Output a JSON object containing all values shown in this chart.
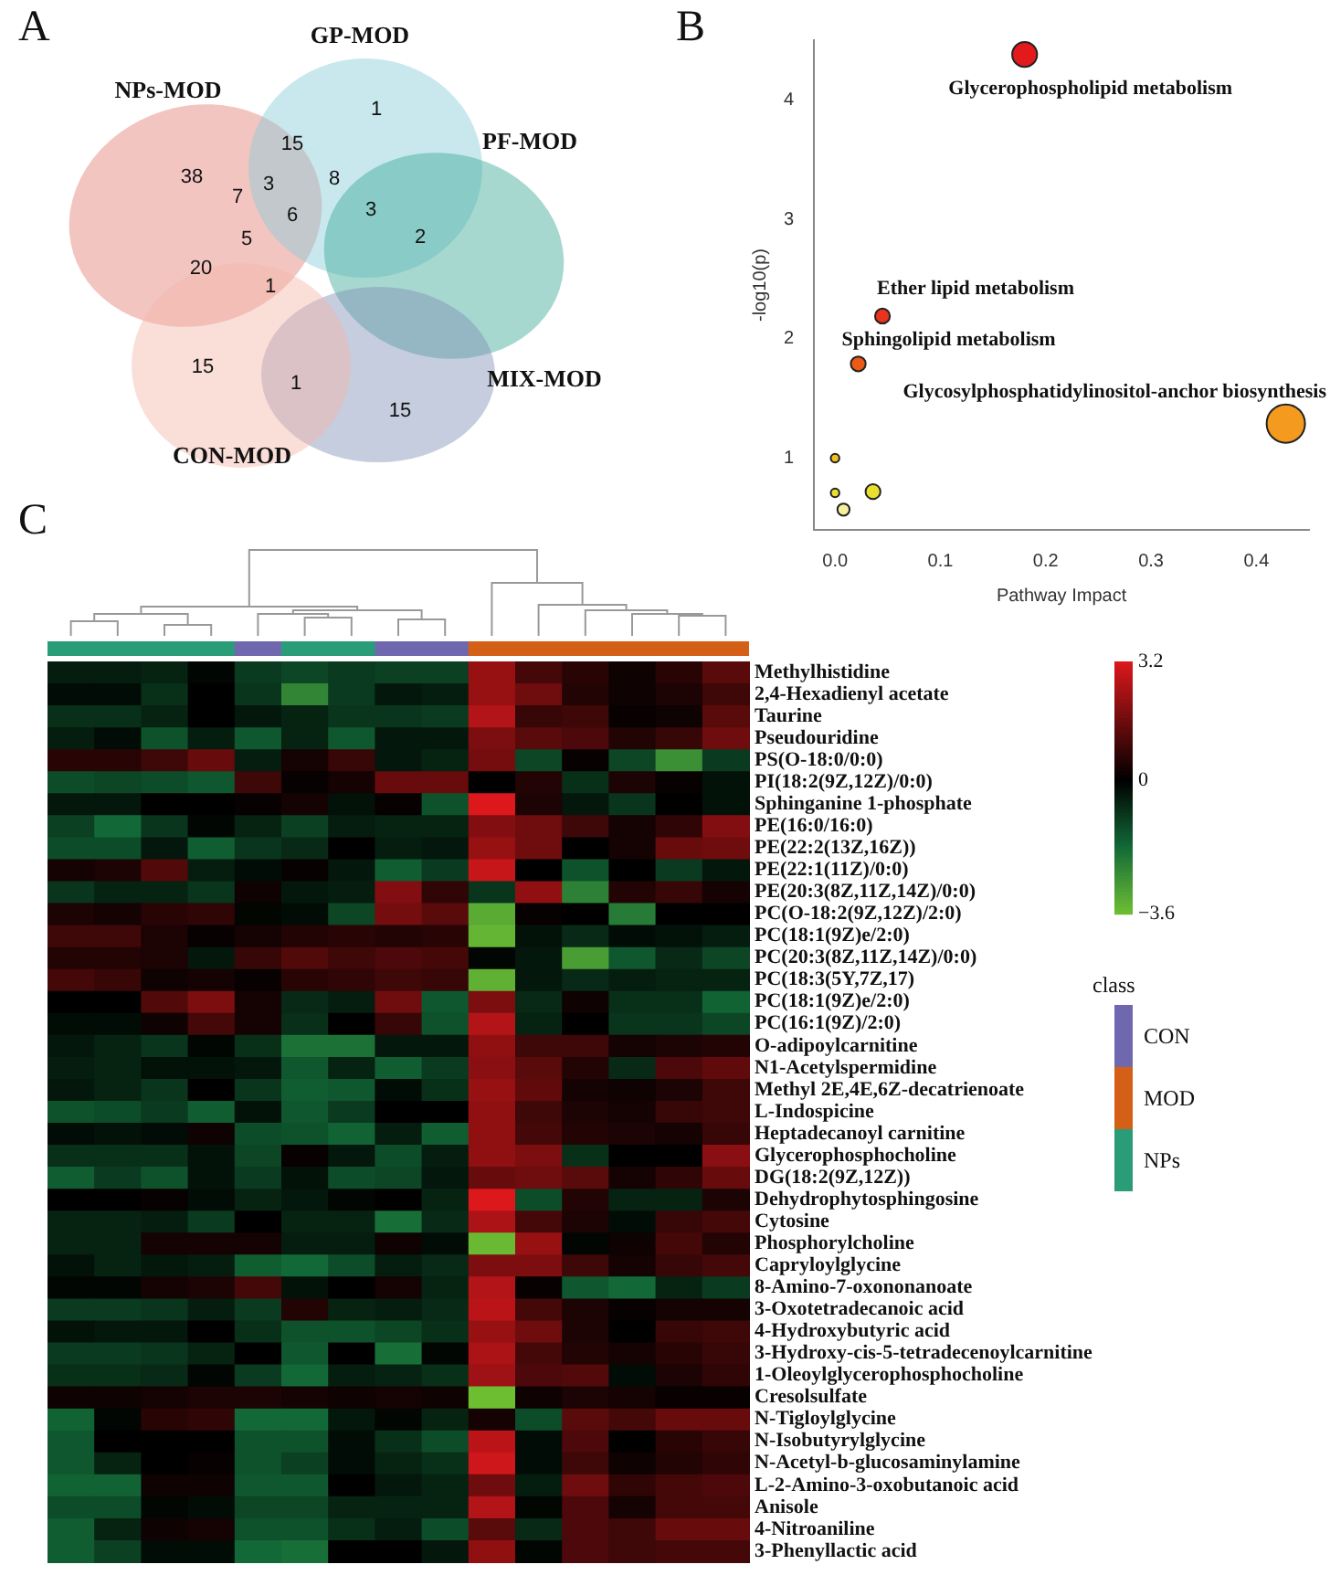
{
  "chart_data": [
    {
      "type": "other",
      "title": "A",
      "categories": [
        "NPs-MOD",
        "GP-MOD",
        "PF-MOD",
        "MIX-MOD",
        "CON-MOD"
      ],
      "colors": [
        "#e57f73",
        "#87ccd9",
        "#3aa896",
        "#8190b5",
        "#f4b5a8"
      ],
      "annotations": [
        "1",
        "15",
        "38",
        "3",
        "8",
        "7",
        "6",
        "3",
        "2",
        "5",
        "20",
        "1",
        "15",
        "1",
        "15"
      ]
    },
    {
      "type": "bubble",
      "title": "B",
      "xlabel": "Pathway Impact",
      "ylabel": "-log10(p)",
      "x": [
        0.18,
        0.045,
        0.022,
        0.428,
        0,
        0,
        0.036,
        0.008
      ],
      "values": [
        4.38,
        2.19,
        1.79,
        1.29,
        1.0,
        0.71,
        0.72,
        0.57
      ],
      "sizes": [
        0.42,
        0.15,
        0.15,
        1,
        0.05,
        0.05,
        0.15,
        0.1
      ],
      "colors": [
        "#e31a1c",
        "#e8341c",
        "#ea5a14",
        "#f39a1f",
        "#f0c020",
        "#e8e030",
        "#e8e030",
        "#f5f0a0"
      ],
      "xlim": [
        -0.02,
        0.45
      ],
      "ylim": [
        0.4,
        4.5
      ],
      "xticks": [
        {
          "value": 0,
          "label": "0.0"
        },
        0.1,
        0.2,
        0.3,
        0.4
      ],
      "yticks": [
        1,
        2,
        3,
        4
      ],
      "annotations": [
        {
          "text": "Glycerophospholipid metabolism",
          "x": 0.18,
          "y": 4.38
        },
        {
          "text": "Ether lipid metabolism",
          "x": 0.045,
          "y": 2.19
        },
        {
          "text": "Sphingolipid metabolism",
          "x": 0.022,
          "y": 1.79
        },
        {
          "text": "Glycosylphosphatidylinositol-anchor biosynthesis",
          "x": 0.428,
          "y": 1.29
        }
      ]
    },
    {
      "type": "heatmap",
      "title": "C",
      "categories": [
        null,
        null,
        null,
        null,
        null,
        null,
        null,
        null,
        null,
        null,
        null,
        null,
        null,
        null,
        null
      ],
      "y_categories": [
        "Methylhistidine",
        "2,4-Hexadienyl acetate",
        "Taurine",
        "Pseudouridine",
        "PS(O-18:0/0:0)",
        "PI(18:2(9Z,12Z)/0:0)",
        "Sphinganine 1-phosphate",
        "PE(16:0/16:0)",
        "PE(22:2(13Z,16Z))",
        "PE(22:1(11Z)/0:0)",
        "PE(20:3(8Z,11Z,14Z)/0:0)",
        "PC(O-18:2(9Z,12Z)/2:0)",
        "PC(18:1(9Z)e/2:0)",
        "PC(20:3(8Z,11Z,14Z)/0:0)",
        "PC(18:3(5Y,7Z,17)",
        "PC(18:1(9Z)e/2:0)",
        "PC(16:1(9Z)/2:0)",
        "O-adipoylcarnitine",
        "N1-Acetylspermidine",
        "Methyl 2E,4E,6Z-decatrienoate",
        "L-Indospicine",
        "Heptadecanoyl carnitine",
        "Glycerophosphocholine",
        "DG(18:2(9Z,12Z))",
        "Dehydrophytosphingosine",
        "Cytosine",
        "Phosphorylcholine",
        "Capryloylglycine",
        "8-Amino-7-oxononanoate",
        "3-Oxotetradecanoic acid",
        "4-Hydroxybutyric acid",
        "3-Hydroxy-cis-5-tetradecenoylcarnitine",
        "1-Oleoylglycerophosphocholine",
        "Cresolsulfate",
        "N-Tigloylglycine",
        "N-Isobutyrylglycine",
        "N-Acetyl-b-glucosaminylamine",
        "L-2-Amino-3-oxobutanoic acid",
        "Anisole",
        "4-Nitroaniline",
        "3-Phenyllactic acid"
      ],
      "cells": [
        [
          -0.5,
          -0.5,
          -0.6,
          -0.1,
          -1.0,
          -1.2,
          -1.0,
          -1.1,
          -1.1,
          2.2,
          1.0,
          0.6,
          0.2,
          0.6,
          1.3
        ],
        [
          -0.2,
          -0.2,
          -0.8,
          0,
          -0.9,
          -2.4,
          -1.0,
          -0.4,
          -0.5,
          2.2,
          1.6,
          0.5,
          0.2,
          0.4,
          0.9
        ],
        [
          -0.8,
          -0.8,
          -0.6,
          0,
          -0.4,
          -0.6,
          -0.9,
          -0.9,
          -1.0,
          2.6,
          0.8,
          0.9,
          0.1,
          0.2,
          1.3
        ],
        [
          -0.5,
          -0.2,
          -1.4,
          -0.5,
          -1.5,
          -0.6,
          -1.5,
          -0.4,
          -0.4,
          1.8,
          1.3,
          1.1,
          0.5,
          0.8,
          1.6
        ],
        [
          0.6,
          0.6,
          0.9,
          1.5,
          -0.5,
          0.3,
          0.8,
          -0.4,
          -0.6,
          1.7,
          -1.2,
          0.1,
          -1.2,
          -2.6,
          -1.0
        ],
        [
          -1.3,
          -1.2,
          -1.3,
          -1.5,
          0.9,
          0.1,
          0.3,
          1.5,
          1.5,
          0,
          0.5,
          -0.8,
          0.4,
          0.1,
          -0.3
        ],
        [
          -0.4,
          -0.4,
          0,
          0,
          0.1,
          0.3,
          -0.3,
          0.1,
          -1.4,
          3.2,
          0.4,
          -0.4,
          -0.9,
          0,
          -0.3
        ],
        [
          -1.1,
          -1.8,
          -0.9,
          -0.1,
          -0.6,
          -1.1,
          -0.5,
          -0.6,
          -0.6,
          1.9,
          1.6,
          0.9,
          0.3,
          0.7,
          1.9
        ],
        [
          -1.3,
          -1.3,
          -0.4,
          -1.6,
          -0.9,
          -0.7,
          0,
          -0.5,
          -0.4,
          2.2,
          1.6,
          0,
          0.3,
          1.5,
          1.6
        ],
        [
          0.3,
          0.4,
          1.2,
          -0.5,
          -0.2,
          0.1,
          -0.4,
          -1.6,
          -1.0,
          2.9,
          0,
          -1.4,
          0,
          -1.0,
          -0.4
        ],
        [
          -0.9,
          -0.6,
          -0.6,
          -0.9,
          0.2,
          -0.4,
          -0.5,
          1.9,
          0.7,
          -0.9,
          2.1,
          -2.3,
          0.5,
          0.8,
          0.3
        ],
        [
          0.4,
          0.3,
          0.6,
          0.7,
          -0.1,
          -0.2,
          -1.2,
          1.7,
          1.3,
          -3.2,
          0.1,
          0,
          -2.2,
          0,
          0
        ],
        [
          0.9,
          0.9,
          0.4,
          0.1,
          0.3,
          0.5,
          0.6,
          0.5,
          0.6,
          -3.4,
          -0.3,
          -0.7,
          -0.2,
          -0.3,
          -0.5
        ],
        [
          0.5,
          0.5,
          0.4,
          -0.4,
          0.8,
          1.2,
          0.9,
          1.1,
          1.0,
          -0.1,
          -0.4,
          -2.9,
          -1.5,
          -0.7,
          -1.2
        ],
        [
          1.0,
          0.8,
          0.2,
          0.3,
          0.1,
          0.6,
          0.7,
          0.9,
          0.8,
          -3.3,
          -0.4,
          -0.7,
          -0.5,
          -0.6,
          -0.6
        ],
        [
          0,
          0,
          1.2,
          1.8,
          0.3,
          -0.7,
          -0.5,
          1.6,
          -1.5,
          1.8,
          -0.7,
          0.2,
          -0.8,
          -0.8,
          -1.7
        ],
        [
          -0.2,
          -0.2,
          0.2,
          1.0,
          0.3,
          -0.8,
          0,
          0.8,
          -1.4,
          2.6,
          -0.6,
          0,
          -0.9,
          -0.9,
          -1.2
        ],
        [
          -0.4,
          -0.6,
          -0.9,
          -0.1,
          -0.8,
          -2.0,
          -2.0,
          -0.4,
          -0.4,
          2.1,
          0.9,
          0.9,
          0.3,
          0.4,
          0.5
        ],
        [
          -0.5,
          -0.6,
          -0.3,
          -0.3,
          -0.4,
          -1.5,
          -0.6,
          -1.6,
          -1.0,
          2.0,
          1.3,
          0.5,
          -0.7,
          1.1,
          1.4
        ],
        [
          -0.4,
          -0.6,
          -0.9,
          0,
          -0.9,
          -1.6,
          -1.5,
          -0.2,
          -0.8,
          2.2,
          1.4,
          0.3,
          0.2,
          0.4,
          0.9
        ],
        [
          -1.4,
          -1.3,
          -1.0,
          -1.6,
          -0.3,
          -1.5,
          -1.0,
          0,
          0,
          2.1,
          0.9,
          0.4,
          0.3,
          0.8,
          0.9
        ],
        [
          -0.2,
          -0.3,
          -0.2,
          0.2,
          -1.3,
          -1.4,
          -1.7,
          -0.5,
          -1.6,
          2.1,
          1.0,
          0.5,
          0.4,
          0.3,
          0.8
        ],
        [
          -0.8,
          -0.8,
          -0.8,
          -0.3,
          -1.2,
          0.1,
          -0.4,
          -1.3,
          -0.5,
          2.1,
          1.8,
          -0.8,
          0,
          0,
          2.0
        ],
        [
          -1.6,
          -1.0,
          -1.4,
          -0.3,
          -1.0,
          -0.3,
          -1.3,
          -1.2,
          -0.4,
          1.5,
          1.6,
          1.3,
          0.3,
          0.7,
          1.5
        ],
        [
          0,
          0,
          0.1,
          -0.2,
          -0.6,
          -0.4,
          -0.1,
          0,
          -0.6,
          3.2,
          -1.3,
          0.5,
          -0.6,
          -0.6,
          0.4
        ],
        [
          -0.6,
          -0.6,
          -0.5,
          -1.0,
          0,
          -0.6,
          -0.6,
          -1.9,
          -0.7,
          2.5,
          1.0,
          0.4,
          -0.2,
          0.8,
          1.0
        ],
        [
          -0.6,
          -0.6,
          0.3,
          0.3,
          0.3,
          -0.5,
          -0.5,
          0.2,
          -0.2,
          -3.5,
          2.2,
          -0.1,
          0.2,
          1.0,
          0.5
        ],
        [
          -0.3,
          -0.6,
          -0.4,
          -0.5,
          -1.6,
          -1.8,
          -1.3,
          -0.5,
          -0.7,
          1.8,
          1.8,
          0.9,
          0.3,
          0.8,
          1.0
        ],
        [
          -0.1,
          -0.1,
          0.3,
          0.4,
          1.0,
          -0.3,
          0,
          0.3,
          -0.6,
          2.6,
          0.1,
          -1.5,
          -1.8,
          -0.6,
          -1.0
        ],
        [
          -1.0,
          -1.0,
          -0.9,
          -0.5,
          -1.0,
          0.5,
          -0.6,
          -0.5,
          -0.7,
          2.7,
          1.0,
          0.4,
          0.1,
          0.3,
          0.3
        ],
        [
          -0.3,
          -0.4,
          -0.4,
          0,
          -0.8,
          -1.4,
          -1.4,
          -1.2,
          -0.8,
          2.2,
          1.6,
          0.4,
          0,
          0.8,
          0.9
        ],
        [
          -1.0,
          -1.0,
          -0.9,
          -0.6,
          0,
          -1.5,
          0,
          -1.9,
          -0.1,
          2.5,
          1.0,
          0.5,
          0.3,
          0.6,
          0.8
        ],
        [
          -0.8,
          -0.8,
          -0.7,
          -0.1,
          -1.0,
          -1.8,
          -0.5,
          -0.6,
          -0.8,
          2.3,
          1.1,
          1.2,
          -0.2,
          0.4,
          0.7
        ],
        [
          0.2,
          0.2,
          0.3,
          0.4,
          0.4,
          0.3,
          0.2,
          0.3,
          0.2,
          -3.6,
          0.2,
          0.4,
          0.3,
          0.1,
          0.1
        ],
        [
          -1.7,
          -0.1,
          0.6,
          0.7,
          -1.8,
          -1.8,
          -0.4,
          -0.1,
          -0.6,
          0.3,
          -1.3,
          1.3,
          1.0,
          1.5,
          1.5
        ],
        [
          -1.5,
          0,
          0,
          0,
          -1.4,
          -1.4,
          -0.2,
          -0.8,
          -1.3,
          2.7,
          -0.2,
          1.1,
          0,
          0.6,
          0.8
        ],
        [
          -1.5,
          -0.6,
          0,
          0.1,
          -1.4,
          -1.1,
          -0.2,
          -0.6,
          -0.8,
          3.0,
          -0.2,
          0.9,
          0.2,
          0.5,
          0.7
        ],
        [
          -1.7,
          -1.7,
          0.2,
          0.2,
          -1.5,
          -1.5,
          0,
          -0.4,
          -0.6,
          1.6,
          -0.5,
          1.6,
          0.7,
          1.0,
          1.1
        ],
        [
          -1.3,
          -1.3,
          -0.1,
          -0.2,
          -1.2,
          -1.2,
          -0.6,
          -0.6,
          -0.6,
          2.6,
          -0.1,
          1.1,
          0.3,
          1.0,
          1.0
        ],
        [
          -1.6,
          -0.6,
          0.2,
          0.3,
          -1.4,
          -1.4,
          -0.8,
          -0.5,
          -1.3,
          1.3,
          -0.7,
          1.1,
          0.9,
          1.5,
          1.5
        ],
        [
          -1.6,
          -1.1,
          -0.2,
          -0.2,
          -1.8,
          -1.9,
          0,
          0,
          -0.4,
          2.1,
          -0.1,
          1.1,
          0.9,
          1.0,
          1.0
        ]
      ],
      "clim": [
        -3.6,
        3.2
      ],
      "cticks": [
        3.2,
        0,
        {
          "value": -3.6,
          "label": "−3.6"
        }
      ],
      "annotations": [
        "class",
        "CON",
        "MOD",
        "NPs"
      ]
    }
  ]
}
